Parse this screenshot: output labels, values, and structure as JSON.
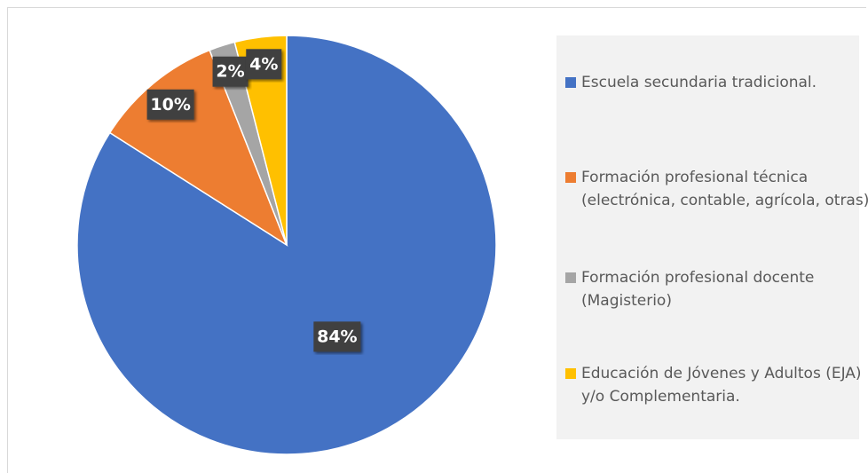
{
  "chart_data": {
    "type": "pie",
    "categories": [
      "Escuela secundaria tradicional.",
      "Formación profesional técnica (electrónica, contable, agrícola, otras).",
      "Formación profesional docente (Magisterio)",
      "Educación de Jóvenes y Adultos (EJA) y/o Complementaria."
    ],
    "values": [
      84,
      10,
      2,
      4
    ],
    "value_labels": [
      "84%",
      "10%",
      "2%",
      "4%"
    ],
    "colors": [
      "#4472c4",
      "#ed7d31",
      "#a5a5a5",
      "#ffc000"
    ],
    "legend": "right"
  }
}
